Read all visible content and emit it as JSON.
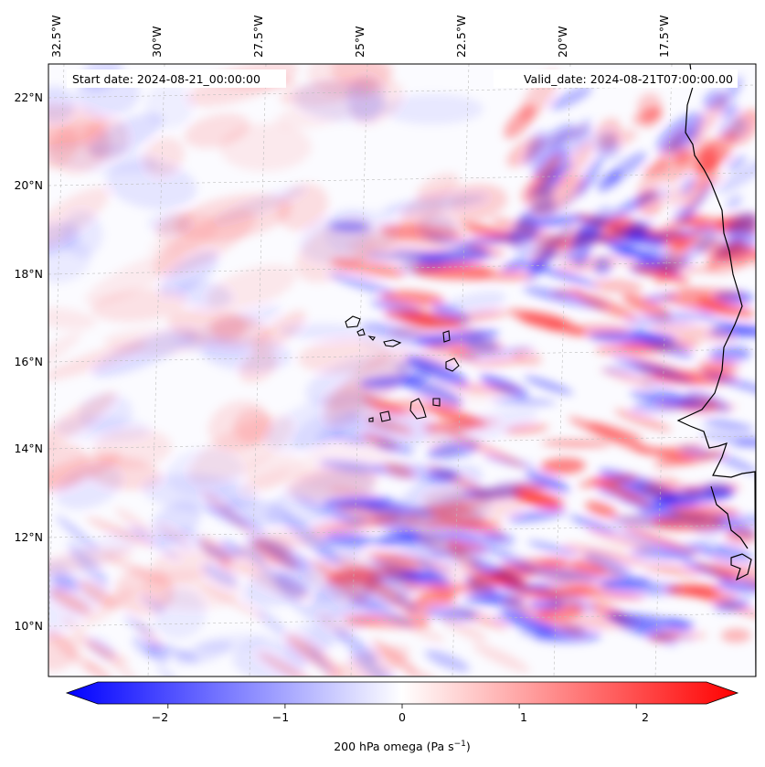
{
  "map": {
    "start_label": "Start date: 2024-08-21_00:00:00",
    "valid_label": "Valid_date: 2024-08-21T07:00:00.00",
    "lon_labels": [
      "32.5°W",
      "30°W",
      "27.5°W",
      "25°W",
      "22.5°W",
      "20°W",
      "17.5°W"
    ],
    "lat_labels": [
      "22°N",
      "20°N",
      "18°N",
      "16°N",
      "14°N",
      "12°N",
      "10°N"
    ],
    "field_colors": {
      "negative": "#0000ff",
      "neutral": "#ffffff",
      "positive": "#ff0000"
    }
  },
  "colorbar": {
    "ticks": [
      "−2",
      "−1",
      "0",
      "1",
      "2"
    ],
    "tick_values": [
      -2,
      -1,
      0,
      1,
      2
    ],
    "range": [
      -2.6,
      2.6
    ],
    "label_main": "200 hPa omega (Pa s",
    "label_sup": "−1",
    "label_end": ")"
  }
}
